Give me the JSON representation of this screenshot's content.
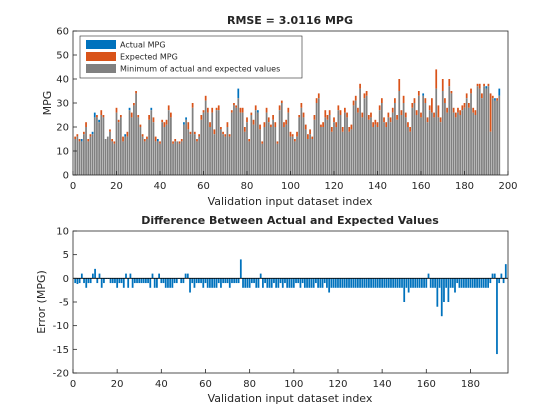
{
  "chart_data": [
    {
      "type": "bar",
      "title": "RMSE = 3.0116 MPG",
      "xlabel": "Validation input dataset index",
      "ylabel": "MPG",
      "xlim": [
        0,
        200
      ],
      "ylim": [
        0,
        60
      ],
      "xticks": [
        "0",
        "20",
        "40",
        "60",
        "80",
        "100",
        "120",
        "140",
        "160",
        "180",
        "200"
      ],
      "yticks": [
        "0",
        "10",
        "20",
        "30",
        "40",
        "50",
        "60"
      ],
      "legend_position": "top-left",
      "grid": false,
      "series": [
        {
          "name": "Actual MPG",
          "color": "#0072BD",
          "values": [
            15,
            16,
            14,
            15,
            17,
            20,
            14,
            16,
            18,
            26,
            24,
            23,
            25,
            24,
            15,
            16,
            18,
            14,
            13,
            26,
            22,
            24,
            14,
            17,
            16,
            28,
            24,
            29,
            34,
            24,
            20,
            16,
            14,
            15,
            23,
            28,
            22,
            14,
            15,
            13,
            22,
            20,
            21,
            27,
            24,
            13,
            14,
            14,
            13,
            14,
            22,
            24,
            19,
            17,
            28,
            17,
            14,
            16,
            23,
            26,
            31,
            26,
            20,
            26,
            17,
            27,
            27,
            19,
            17,
            16,
            20,
            16,
            26,
            29,
            28,
            36,
            26,
            26,
            18,
            22,
            14,
            25,
            21,
            27,
            27,
            19,
            13,
            20,
            26,
            22,
            20,
            23,
            20,
            13,
            27,
            30,
            20,
            21,
            26,
            16,
            16,
            14,
            16,
            24,
            28,
            24,
            19,
            15,
            17,
            15,
            23,
            30,
            32,
            20,
            20,
            24,
            23,
            25,
            18,
            22,
            20,
            27,
            25,
            18,
            26,
            24,
            18,
            19,
            29,
            31,
            26,
            36,
            24,
            32,
            33,
            23,
            24,
            20,
            21,
            20,
            27,
            30,
            22,
            20,
            24,
            22,
            26,
            30,
            23,
            35,
            25,
            30,
            24,
            20,
            18,
            28,
            30,
            25,
            33,
            24,
            34,
            30,
            22,
            27,
            26,
            24,
            36,
            24,
            22,
            35,
            30,
            26,
            37,
            34,
            26,
            24,
            26,
            25,
            27,
            28,
            32,
            28,
            34,
            26,
            25,
            37,
            36,
            32,
            37,
            37,
            37,
            18,
            32,
            32,
            31,
            36
          ]
        },
        {
          "name": "Expected MPG",
          "color": "#D95319",
          "values": [
            16,
            17,
            15,
            14,
            18,
            22,
            15,
            17,
            17,
            24,
            25,
            22,
            27,
            25,
            15,
            16,
            19,
            15,
            14,
            28,
            23,
            25,
            16,
            16,
            18,
            27,
            26,
            30,
            35,
            25,
            21,
            17,
            15,
            16,
            25,
            27,
            24,
            16,
            14,
            14,
            23,
            22,
            23,
            29,
            26,
            14,
            15,
            14,
            14,
            15,
            21,
            23,
            22,
            18,
            30,
            18,
            15,
            17,
            25,
            27,
            33,
            28,
            22,
            28,
            19,
            28,
            29,
            20,
            18,
            17,
            22,
            17,
            27,
            30,
            29,
            32,
            28,
            28,
            20,
            24,
            15,
            26,
            23,
            29,
            26,
            21,
            14,
            22,
            28,
            24,
            21,
            25,
            22,
            14,
            29,
            31,
            22,
            23,
            28,
            18,
            17,
            15,
            18,
            25,
            30,
            26,
            21,
            17,
            19,
            16,
            25,
            32,
            34,
            21,
            22,
            27,
            25,
            27,
            20,
            24,
            22,
            29,
            27,
            20,
            28,
            26,
            20,
            21,
            31,
            33,
            28,
            38,
            26,
            34,
            35,
            25,
            26,
            22,
            23,
            22,
            29,
            32,
            24,
            22,
            26,
            24,
            28,
            32,
            25,
            40,
            27,
            33,
            26,
            22,
            20,
            30,
            32,
            27,
            35,
            26,
            33,
            32,
            24,
            29,
            32,
            26,
            44,
            29,
            24,
            40,
            32,
            28,
            40,
            35,
            28,
            26,
            28,
            27,
            29,
            30,
            34,
            30,
            36,
            28,
            27,
            38,
            38,
            34,
            38,
            36,
            38,
            34,
            33,
            31,
            32,
            33
          ]
        }
      ]
    },
    {
      "type": "bar",
      "title": "Difference Between Actual and Expected Values",
      "xlabel": "Validation input dataset index",
      "ylabel": "Error (MPG)",
      "xlim": [
        0,
        197
      ],
      "ylim": [
        -20,
        10
      ],
      "xticks": [
        "0",
        "20",
        "40",
        "60",
        "80",
        "100",
        "120",
        "140",
        "160",
        "180"
      ],
      "yticks": [
        "-20",
        "-15",
        "-10",
        "-5",
        "0",
        "5",
        "10"
      ],
      "grid": false,
      "series": [
        {
          "color": "#0072BD",
          "values": [
            -1,
            -1.2,
            -1,
            1,
            -1,
            -2,
            -1,
            -1,
            1,
            2,
            -1,
            1,
            -2,
            -1,
            0,
            0,
            -1,
            -1,
            -1,
            -2,
            -1,
            -1,
            -2,
            1,
            -2,
            1,
            -2,
            -1,
            -1,
            -1,
            -1,
            -1,
            -1,
            -1,
            -2,
            1,
            -2,
            -2,
            1,
            -1,
            -1,
            -2,
            -2,
            -2,
            -2,
            -1,
            -1,
            0,
            -1,
            -1,
            1,
            1,
            -3,
            -1,
            -2,
            -1,
            -1,
            -1,
            -2,
            -1,
            -2,
            -2,
            -2,
            -2,
            -2,
            -1,
            -2,
            -1,
            -1,
            -1,
            -2,
            -1,
            -1,
            -1,
            -1,
            4,
            -2,
            -2,
            -2,
            -2,
            -1,
            -1,
            -2,
            -2,
            1,
            -2,
            -1,
            -2,
            -2,
            -2,
            -1,
            -2,
            -2,
            -1,
            -2,
            -1,
            -2,
            -2,
            -2,
            -2,
            -1,
            -1,
            -2,
            -1,
            -2,
            -2,
            -2,
            -2,
            -2,
            -1,
            -2,
            -2,
            -2,
            -1,
            -2,
            -3,
            -2,
            -2,
            -2,
            -2,
            -2,
            -2,
            -2,
            -2,
            -2,
            -2,
            -2,
            -2,
            -2,
            -2,
            -2,
            -2,
            -2,
            -2,
            -2,
            -2,
            -2,
            -2,
            -2,
            -2,
            -2,
            -2,
            -2,
            -2,
            -2,
            -2,
            -2,
            -2,
            -2,
            -5,
            -2,
            -3,
            -2,
            -2,
            -2,
            -2,
            -2,
            -2,
            -2,
            -2,
            1,
            -2,
            -2,
            -2,
            -6,
            -2,
            -8,
            -5,
            -2,
            -5,
            -2,
            -2,
            -3,
            -1,
            -2,
            -2,
            -2,
            -2,
            -2,
            -2,
            -2,
            -2,
            -2,
            -2,
            -2,
            -2,
            -2,
            -2,
            -1,
            1,
            1,
            -16,
            -1,
            1,
            -1,
            3
          ]
        }
      ]
    }
  ],
  "legend": {
    "entries": [
      "Actual MPG",
      "Expected MPG",
      "Minimum of actual and expected values"
    ],
    "colors": [
      "#0072BD",
      "#D95319",
      "#808080"
    ]
  }
}
